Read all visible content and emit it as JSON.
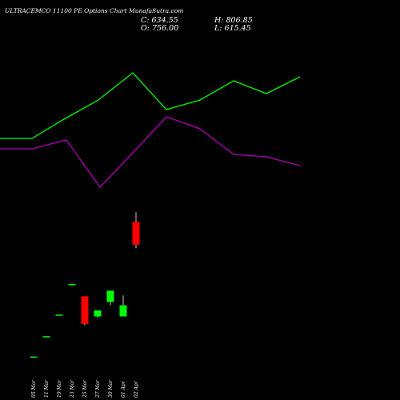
{
  "header": {
    "title": "ULTRACEMCO 11100 PE Options Chart MunafaSutra.com",
    "close": "C: 634.55",
    "open": "O: 756.00",
    "high": "H: 806.85",
    "low": "L: 615.45"
  },
  "colors": {
    "background": "#000000",
    "up": "#00ff00",
    "down": "#ff0000",
    "line_green": "#00ff00",
    "line_magenta": "#b000b0",
    "text": "#ffffff"
  },
  "chart_data": {
    "type": "candlestick",
    "dates": [
      "05 Mar",
      "11 Mar",
      "19 Mar",
      "23 Mar",
      "25 Mar",
      "27 Mar",
      "30 Mar",
      "01 Apr",
      "02 Apr"
    ],
    "candles": [
      {
        "date": "05 Mar",
        "open": 40,
        "high": 40,
        "low": 40,
        "close": 40
      },
      {
        "date": "11 Mar",
        "open": 148,
        "high": 148,
        "low": 148,
        "close": 148
      },
      {
        "date": "19 Mar",
        "open": 263,
        "high": 263,
        "low": 263,
        "close": 263
      },
      {
        "date": "23 Mar",
        "open": 426,
        "high": 426,
        "low": 426,
        "close": 426
      },
      {
        "date": "25 Mar",
        "open": 360,
        "high": 360,
        "low": 206,
        "close": 213
      },
      {
        "date": "27 Mar",
        "open": 253,
        "high": 285,
        "low": 245,
        "close": 285
      },
      {
        "date": "30 Mar",
        "open": 330,
        "high": 390,
        "low": 312,
        "close": 390
      },
      {
        "date": "01 Apr",
        "open": 253,
        "high": 365,
        "low": 253,
        "close": 312
      },
      {
        "date": "02 Apr",
        "open": 756,
        "high": 806.85,
        "low": 615.45,
        "close": 634.55
      }
    ],
    "lines": [
      {
        "color": "#00ff00",
        "x": [
          0,
          40,
          80,
          123,
          166,
          208,
          250,
          292,
          333,
          375
        ],
        "values": [
          173,
          173,
          149,
          125,
          91,
          137,
          125,
          101,
          117,
          96
        ]
      },
      {
        "color": "#b000b0",
        "x": [
          0,
          40,
          83,
          125,
          166,
          208,
          250,
          292,
          333,
          375
        ],
        "values": [
          186,
          186,
          175,
          234,
          191,
          146,
          161,
          193,
          196,
          207
        ]
      }
    ]
  }
}
